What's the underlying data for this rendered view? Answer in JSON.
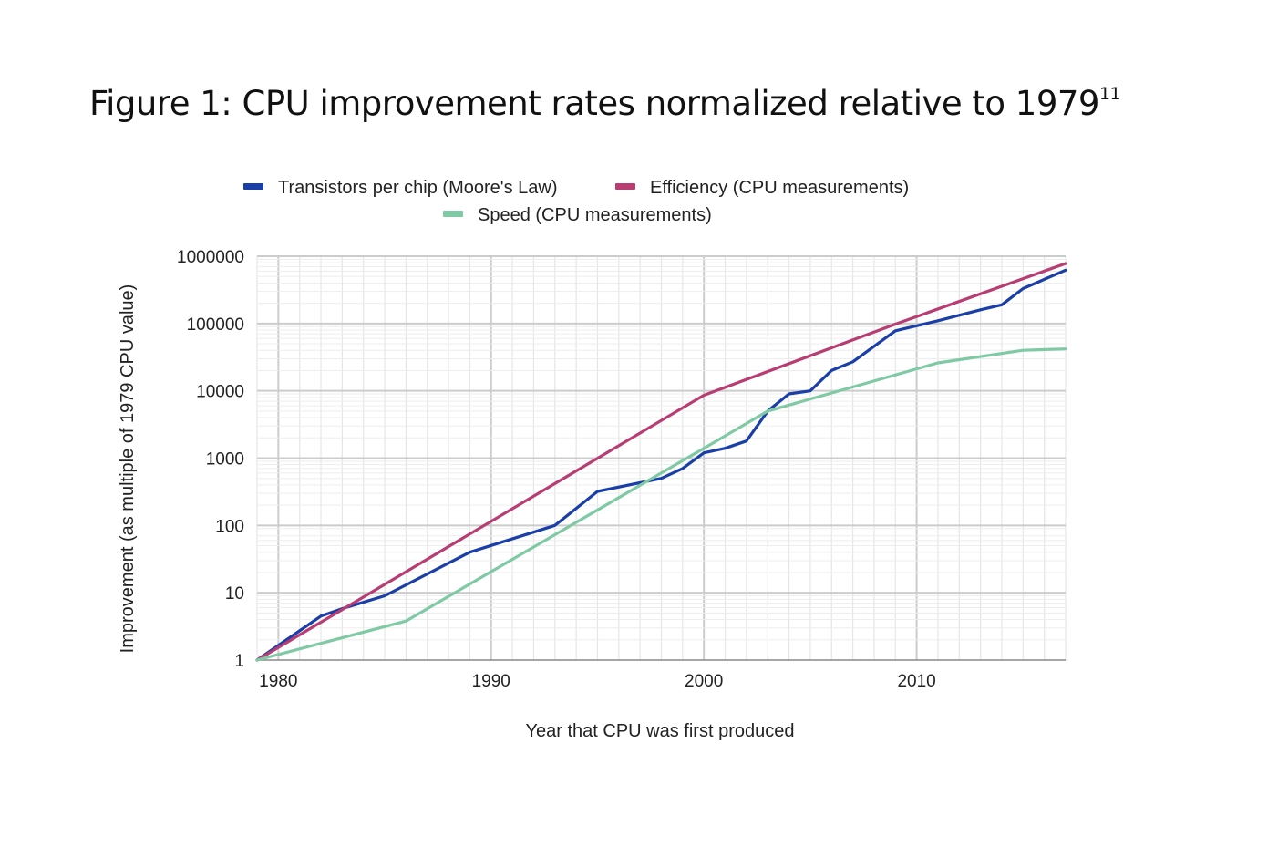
{
  "figure": {
    "title": "Figure 1: CPU improvement rates normalized relative to 1979",
    "footnote": "11"
  },
  "chart_data": {
    "type": "line",
    "xlabel": "Year that CPU was first produced",
    "ylabel": "Improvement (as multiple of 1979 CPU value)",
    "xlim": [
      1979,
      2017
    ],
    "ylim": [
      1,
      1000000
    ],
    "y_scale": "log",
    "x_ticks": [
      "1980",
      "1990",
      "2000",
      "2010"
    ],
    "y_ticks": [
      "1",
      "10",
      "100",
      "1000",
      "10000",
      "100000",
      "1000000"
    ],
    "grid": true,
    "legend_position": "top",
    "series": [
      {
        "name": "Transistors per chip (Moore's Law)",
        "color": "#1a3fa8",
        "x": [
          1979,
          1982,
          1983,
          1985,
          1989,
          1993,
          1995,
          1998,
          1999,
          2000,
          2001,
          2002,
          2003,
          2004,
          2005,
          2006,
          2007,
          2009,
          2011,
          2013,
          2014,
          2015,
          2017
        ],
        "y": [
          1,
          4.5,
          5.8,
          9,
          40,
          100,
          320,
          500,
          700,
          1200,
          1400,
          1800,
          5000,
          9000,
          10000,
          20000,
          27000,
          78000,
          110000,
          160000,
          190000,
          330000,
          620000
        ]
      },
      {
        "name": "Efficiency (CPU measurements)",
        "color": "#b83d73",
        "x": [
          1979,
          2000,
          2009,
          2017
        ],
        "y": [
          1,
          8600,
          98000,
          780000
        ]
      },
      {
        "name": "Speed (CPU measurements)",
        "color": "#7fcaa4",
        "x": [
          1979,
          1986,
          2000,
          2003,
          2011,
          2015,
          2017
        ],
        "y": [
          1,
          3.8,
          1400,
          5000,
          26000,
          40000,
          42000
        ]
      }
    ]
  }
}
